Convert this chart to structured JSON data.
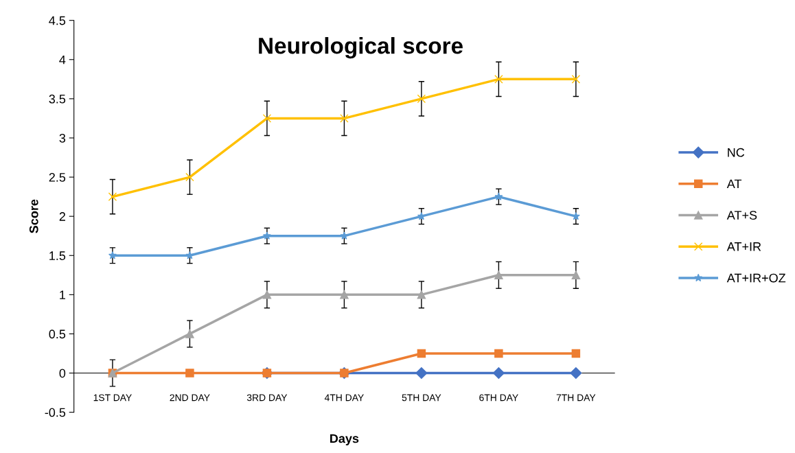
{
  "chart_data": {
    "type": "line",
    "title": "Neurological score",
    "xlabel": "Days",
    "ylabel": "Score",
    "categories": [
      "1ST DAY",
      "2ND DAY",
      "3RD DAY",
      "4TH DAY",
      "5TH DAY",
      "6TH DAY",
      "7TH DAY"
    ],
    "series": [
      {
        "name": "NC",
        "color": "#4472c4",
        "marker": "diamond",
        "values": [
          null,
          null,
          0,
          0,
          0,
          0,
          0
        ]
      },
      {
        "name": "AT",
        "color": "#ed7d31",
        "marker": "square",
        "values": [
          0,
          0,
          0,
          0,
          0.25,
          0.25,
          0.25
        ]
      },
      {
        "name": "AT+S",
        "color": "#a5a5a5",
        "marker": "triangle",
        "values": [
          0,
          0.5,
          1,
          1,
          1,
          1.25,
          1.25
        ],
        "errors": [
          0.17,
          0.17,
          0.17,
          0.17,
          0.17,
          0.17,
          0.17
        ]
      },
      {
        "name": "AT+IR",
        "color": "#ffc000",
        "marker": "cross",
        "values": [
          2.25,
          2.5,
          3.25,
          3.25,
          3.5,
          3.75,
          3.75
        ],
        "errors": [
          0.22,
          0.22,
          0.22,
          0.22,
          0.22,
          0.22,
          0.22
        ]
      },
      {
        "name": "AT+IR+OZ",
        "color": "#5b9bd5",
        "marker": "star",
        "values": [
          1.5,
          1.5,
          1.75,
          1.75,
          2,
          2.25,
          2
        ],
        "errors": [
          0.1,
          0.1,
          0.1,
          0.1,
          0.1,
          0.1,
          0.1
        ]
      }
    ],
    "ylim": [
      -0.5,
      4.5
    ],
    "yticks": [
      -0.5,
      0,
      0.5,
      1,
      1.5,
      2,
      2.5,
      3,
      3.5,
      4,
      4.5
    ],
    "grid": false,
    "legend": "right",
    "line_style": "solid"
  }
}
